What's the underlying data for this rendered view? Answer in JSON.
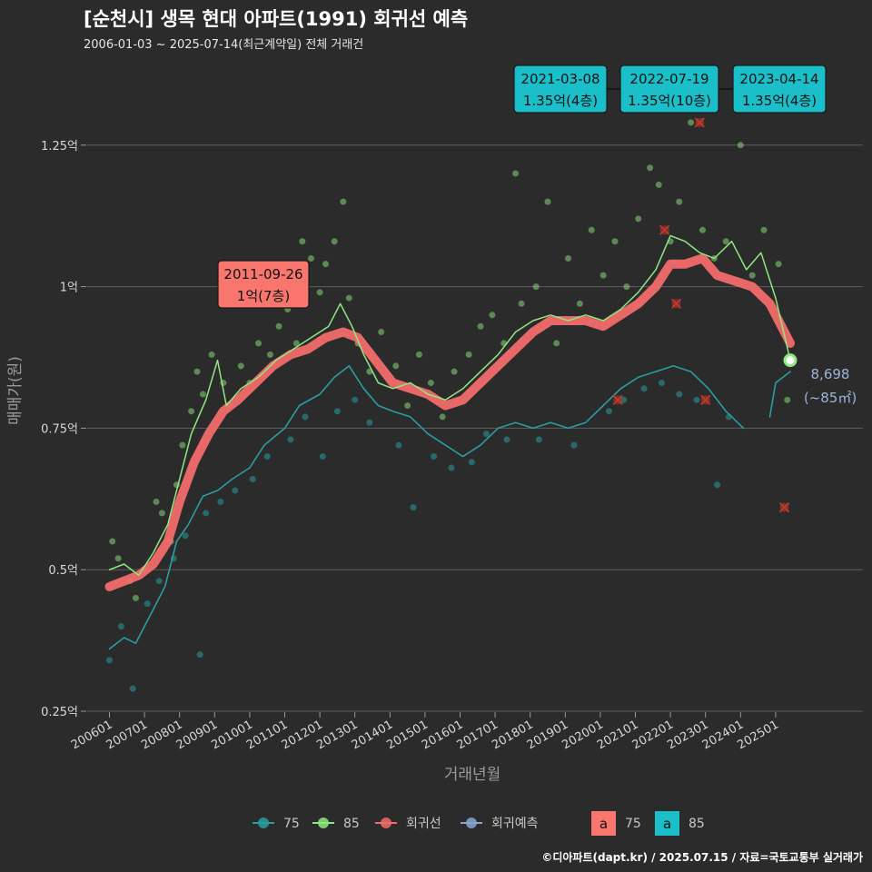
{
  "header": {
    "title": "[순천시] 생목 현대 아파트(1991) 회귀선 예측",
    "subtitle": "2006-01-03 ~ 2025-07-14(최근계약일) 전체 거래건"
  },
  "credit": "©디아파트(dapt.kr) / 2025.07.15 / 자료=국토교통부 실거래가",
  "colors": {
    "background": "#2b2b2b",
    "grid": "#5e5e5e",
    "text": "#d8d8d8",
    "series_75": "#2a9d9f",
    "series_85": "#8fe87f",
    "regression": "#f26b6b",
    "forecast": "#8aa4d4",
    "label_teal": "#1bbfc9",
    "label_salmon": "#f8766d",
    "cross": "#c0392b"
  },
  "annotations": [
    {
      "date": "2011-09-26",
      "text": "1억(7층)",
      "style": "salmon",
      "anchor_x": "2011-10",
      "anchor_y": 1.0
    },
    {
      "date": "2021-03-08",
      "text": "1.35억(4층)",
      "style": "teal",
      "anchor_x": "2021-03",
      "anchor_y": 1.35
    },
    {
      "date": "2022-07-19",
      "text": "1.35억(10층)",
      "style": "teal",
      "anchor_x": "2022-07",
      "anchor_y": 1.35
    },
    {
      "date": "2023-04-14",
      "text": "1.35억(4층)",
      "style": "teal",
      "anchor_x": "2023-04",
      "anchor_y": 1.35
    }
  ],
  "last_label": {
    "value": "8,698",
    "area": "(~85㎡)"
  },
  "legend": {
    "items": [
      {
        "key": "75",
        "label": "75",
        "color": "#2a9d9f"
      },
      {
        "key": "85",
        "label": "85",
        "color": "#8fe87f"
      },
      {
        "key": "reg",
        "label": "회귀선",
        "color": "#f26b6b"
      },
      {
        "key": "fc",
        "label": "회귀예측",
        "color": "#8aa4d4"
      }
    ],
    "boxes": [
      {
        "letter": "a",
        "label": "75",
        "color": "#f8766d"
      },
      {
        "letter": "a",
        "label": "85",
        "color": "#1bbfc9"
      }
    ]
  },
  "chart_data": {
    "type": "line",
    "xlabel": "거래년월",
    "ylabel": "매매가(원)",
    "x_range": [
      "2006-01",
      "2025-12"
    ],
    "ylim": [
      0.25,
      1.35
    ],
    "y_ticks": [
      {
        "v": 0.25,
        "label": "0.25억"
      },
      {
        "v": 0.5,
        "label": "0.5억"
      },
      {
        "v": 0.75,
        "label": "0.75억"
      },
      {
        "v": 1.0,
        "label": "1억"
      },
      {
        "v": 1.25,
        "label": "1.25억"
      }
    ],
    "x_ticks": [
      "200601",
      "200701",
      "200801",
      "200901",
      "201001",
      "201101",
      "201201",
      "201301",
      "201401",
      "201501",
      "201601",
      "201701",
      "201801",
      "201901",
      "202001",
      "202101",
      "202201",
      "202301",
      "202401",
      "202501"
    ],
    "grid": "horizontal",
    "legend_position": "bottom",
    "series": [
      {
        "key": "75",
        "name": "75",
        "points": [
          [
            "2006-01",
            0.36
          ],
          [
            "2006-06",
            0.38
          ],
          [
            "2006-10",
            0.37
          ],
          [
            "2007-03",
            0.42
          ],
          [
            "2007-08",
            0.47
          ],
          [
            "2007-12",
            0.55
          ],
          [
            "2008-04",
            0.58
          ],
          [
            "2008-09",
            0.63
          ],
          [
            "2009-02",
            0.64
          ],
          [
            "2009-07",
            0.66
          ],
          [
            "2010-01",
            0.68
          ],
          [
            "2010-06",
            0.72
          ],
          [
            "2011-01",
            0.75
          ],
          [
            "2011-06",
            0.79
          ],
          [
            "2012-01",
            0.81
          ],
          [
            "2012-06",
            0.84
          ],
          [
            "2012-11",
            0.86
          ],
          [
            "2013-04",
            0.82
          ],
          [
            "2013-09",
            0.79
          ],
          [
            "2014-02",
            0.78
          ],
          [
            "2014-08",
            0.77
          ],
          [
            "2015-02",
            0.74
          ],
          [
            "2015-08",
            0.72
          ],
          [
            "2016-02",
            0.7
          ],
          [
            "2016-08",
            0.72
          ],
          [
            "2017-02",
            0.75
          ],
          [
            "2017-08",
            0.76
          ],
          [
            "2018-02",
            0.75
          ],
          [
            "2018-08",
            0.76
          ],
          [
            "2019-02",
            0.75
          ],
          [
            "2019-08",
            0.76
          ],
          [
            "2020-02",
            0.79
          ],
          [
            "2020-08",
            0.82
          ],
          [
            "2021-02",
            0.84
          ],
          [
            "2021-08",
            0.85
          ],
          [
            "2022-02",
            0.86
          ],
          [
            "2022-08",
            0.85
          ],
          [
            "2023-02",
            0.82
          ],
          [
            "2023-08",
            0.78
          ],
          [
            "2024-02",
            0.75
          ]
        ]
      },
      {
        "key": "75b",
        "name": "",
        "points": [
          [
            "2024-11",
            0.77
          ],
          [
            "2025-01",
            0.83
          ],
          [
            "2025-06",
            0.85
          ]
        ]
      },
      {
        "key": "85",
        "name": "85",
        "points": [
          [
            "2006-01",
            0.5
          ],
          [
            "2006-06",
            0.51
          ],
          [
            "2006-11",
            0.49
          ],
          [
            "2007-04",
            0.53
          ],
          [
            "2007-09",
            0.58
          ],
          [
            "2008-01",
            0.66
          ],
          [
            "2008-05",
            0.74
          ],
          [
            "2008-10",
            0.8
          ],
          [
            "2009-02",
            0.87
          ],
          [
            "2009-05",
            0.79
          ],
          [
            "2009-10",
            0.82
          ],
          [
            "2010-04",
            0.84
          ],
          [
            "2010-10",
            0.87
          ],
          [
            "2011-04",
            0.89
          ],
          [
            "2011-10",
            0.91
          ],
          [
            "2012-04",
            0.93
          ],
          [
            "2012-08",
            0.97
          ],
          [
            "2012-12",
            0.93
          ],
          [
            "2013-04",
            0.88
          ],
          [
            "2013-09",
            0.83
          ],
          [
            "2014-02",
            0.82
          ],
          [
            "2014-08",
            0.83
          ],
          [
            "2015-02",
            0.81
          ],
          [
            "2015-08",
            0.8
          ],
          [
            "2016-02",
            0.82
          ],
          [
            "2016-08",
            0.85
          ],
          [
            "2017-02",
            0.88
          ],
          [
            "2017-08",
            0.92
          ],
          [
            "2018-02",
            0.94
          ],
          [
            "2018-08",
            0.95
          ],
          [
            "2019-02",
            0.94
          ],
          [
            "2019-08",
            0.95
          ],
          [
            "2020-02",
            0.94
          ],
          [
            "2020-08",
            0.96
          ],
          [
            "2021-02",
            0.99
          ],
          [
            "2021-08",
            1.03
          ],
          [
            "2022-01",
            1.09
          ],
          [
            "2022-06",
            1.08
          ],
          [
            "2022-11",
            1.06
          ],
          [
            "2023-04",
            1.05
          ],
          [
            "2023-10",
            1.08
          ],
          [
            "2024-03",
            1.03
          ],
          [
            "2024-08",
            1.06
          ],
          [
            "2025-01",
            0.98
          ],
          [
            "2025-06",
            0.87
          ]
        ]
      },
      {
        "key": "reg",
        "name": "회귀선",
        "points": [
          [
            "2006-01",
            0.47
          ],
          [
            "2006-06",
            0.48
          ],
          [
            "2006-11",
            0.49
          ],
          [
            "2007-04",
            0.51
          ],
          [
            "2007-09",
            0.55
          ],
          [
            "2008-01",
            0.62
          ],
          [
            "2008-06",
            0.69
          ],
          [
            "2008-11",
            0.74
          ],
          [
            "2009-04",
            0.78
          ],
          [
            "2009-09",
            0.8
          ],
          [
            "2010-03",
            0.83
          ],
          [
            "2010-09",
            0.86
          ],
          [
            "2011-03",
            0.88
          ],
          [
            "2011-09",
            0.89
          ],
          [
            "2012-03",
            0.91
          ],
          [
            "2012-09",
            0.92
          ],
          [
            "2013-02",
            0.91
          ],
          [
            "2013-08",
            0.87
          ],
          [
            "2014-02",
            0.83
          ],
          [
            "2014-08",
            0.82
          ],
          [
            "2015-02",
            0.81
          ],
          [
            "2015-08",
            0.79
          ],
          [
            "2016-02",
            0.8
          ],
          [
            "2016-08",
            0.83
          ],
          [
            "2017-02",
            0.86
          ],
          [
            "2017-08",
            0.89
          ],
          [
            "2018-02",
            0.92
          ],
          [
            "2018-08",
            0.94
          ],
          [
            "2019-02",
            0.94
          ],
          [
            "2019-08",
            0.94
          ],
          [
            "2020-02",
            0.93
          ],
          [
            "2020-08",
            0.95
          ],
          [
            "2021-02",
            0.97
          ],
          [
            "2021-08",
            1.0
          ],
          [
            "2022-01",
            1.04
          ],
          [
            "2022-06",
            1.04
          ],
          [
            "2022-12",
            1.05
          ],
          [
            "2023-05",
            1.02
          ],
          [
            "2023-11",
            1.01
          ],
          [
            "2024-05",
            1.0
          ],
          [
            "2024-11",
            0.97
          ],
          [
            "2025-06",
            0.9
          ]
        ]
      }
    ],
    "scatter_85": [
      [
        "2006-02",
        0.55
      ],
      [
        "2006-04",
        0.52
      ],
      [
        "2006-08",
        0.48
      ],
      [
        "2006-10",
        0.45
      ],
      [
        "2007-01",
        0.5
      ],
      [
        "2007-05",
        0.62
      ],
      [
        "2007-07",
        0.6
      ],
      [
        "2007-10",
        0.55
      ],
      [
        "2007-12",
        0.65
      ],
      [
        "2008-02",
        0.72
      ],
      [
        "2008-05",
        0.78
      ],
      [
        "2008-07",
        0.85
      ],
      [
        "2008-09",
        0.81
      ],
      [
        "2008-12",
        0.88
      ],
      [
        "2009-04",
        0.83
      ],
      [
        "2009-06",
        0.79
      ],
      [
        "2009-10",
        0.86
      ],
      [
        "2010-01",
        0.83
      ],
      [
        "2010-04",
        0.9
      ],
      [
        "2010-08",
        0.88
      ],
      [
        "2010-11",
        0.93
      ],
      [
        "2011-02",
        0.96
      ],
      [
        "2011-05",
        0.9
      ],
      [
        "2011-07",
        1.08
      ],
      [
        "2011-10",
        1.05
      ],
      [
        "2012-01",
        0.99
      ],
      [
        "2012-03",
        1.04
      ],
      [
        "2012-06",
        1.08
      ],
      [
        "2012-09",
        1.15
      ],
      [
        "2012-11",
        0.98
      ],
      [
        "2013-02",
        0.9
      ],
      [
        "2013-06",
        0.85
      ],
      [
        "2013-10",
        0.92
      ],
      [
        "2014-03",
        0.86
      ],
      [
        "2014-07",
        0.79
      ],
      [
        "2014-11",
        0.88
      ],
      [
        "2015-03",
        0.83
      ],
      [
        "2015-07",
        0.77
      ],
      [
        "2015-11",
        0.85
      ],
      [
        "2016-04",
        0.88
      ],
      [
        "2016-08",
        0.93
      ],
      [
        "2016-12",
        0.95
      ],
      [
        "2017-04",
        0.9
      ],
      [
        "2017-08",
        1.2
      ],
      [
        "2017-10",
        0.97
      ],
      [
        "2018-03",
        1.0
      ],
      [
        "2018-07",
        1.15
      ],
      [
        "2018-10",
        0.9
      ],
      [
        "2019-02",
        1.05
      ],
      [
        "2019-06",
        0.97
      ],
      [
        "2019-10",
        1.1
      ],
      [
        "2020-02",
        1.02
      ],
      [
        "2020-06",
        1.08
      ],
      [
        "2020-10",
        1.0
      ],
      [
        "2021-02",
        1.12
      ],
      [
        "2021-06",
        1.21
      ],
      [
        "2021-09",
        1.18
      ],
      [
        "2022-01",
        1.08
      ],
      [
        "2022-04",
        1.15
      ],
      [
        "2022-08",
        1.29
      ],
      [
        "2022-12",
        1.1
      ],
      [
        "2023-04",
        1.05
      ],
      [
        "2023-08",
        1.08
      ],
      [
        "2024-01",
        1.25
      ],
      [
        "2024-05",
        1.02
      ],
      [
        "2024-09",
        1.1
      ],
      [
        "2025-02",
        1.04
      ],
      [
        "2025-05",
        0.8
      ]
    ],
    "scatter_75": [
      [
        "2006-01",
        0.34
      ],
      [
        "2006-05",
        0.4
      ],
      [
        "2006-09",
        0.29
      ],
      [
        "2007-02",
        0.44
      ],
      [
        "2007-06",
        0.48
      ],
      [
        "2007-11",
        0.52
      ],
      [
        "2008-03",
        0.56
      ],
      [
        "2008-08",
        0.35
      ],
      [
        "2008-10",
        0.6
      ],
      [
        "2009-03",
        0.62
      ],
      [
        "2009-08",
        0.64
      ],
      [
        "2010-02",
        0.66
      ],
      [
        "2010-07",
        0.7
      ],
      [
        "2011-03",
        0.73
      ],
      [
        "2011-08",
        0.77
      ],
      [
        "2012-02",
        0.7
      ],
      [
        "2012-07",
        0.78
      ],
      [
        "2013-01",
        0.8
      ],
      [
        "2013-06",
        0.76
      ],
      [
        "2014-04",
        0.72
      ],
      [
        "2014-09",
        0.61
      ],
      [
        "2015-04",
        0.7
      ],
      [
        "2015-10",
        0.68
      ],
      [
        "2016-05",
        0.69
      ],
      [
        "2016-10",
        0.74
      ],
      [
        "2017-05",
        0.73
      ],
      [
        "2018-04",
        0.73
      ],
      [
        "2019-04",
        0.72
      ],
      [
        "2020-04",
        0.78
      ],
      [
        "2020-09",
        0.8
      ],
      [
        "2021-04",
        0.82
      ],
      [
        "2021-10",
        0.83
      ],
      [
        "2022-04",
        0.81
      ],
      [
        "2022-10",
        0.8
      ],
      [
        "2023-05",
        0.65
      ],
      [
        "2023-09",
        0.77
      ]
    ],
    "crosses": [
      [
        "2020-07",
        0.8
      ],
      [
        "2021-11",
        1.1
      ],
      [
        "2022-03",
        0.97
      ],
      [
        "2022-11",
        1.29
      ],
      [
        "2023-01",
        0.8
      ],
      [
        "2025-04",
        0.61
      ]
    ],
    "last_point": [
      "2025-06",
      0.87
    ]
  }
}
